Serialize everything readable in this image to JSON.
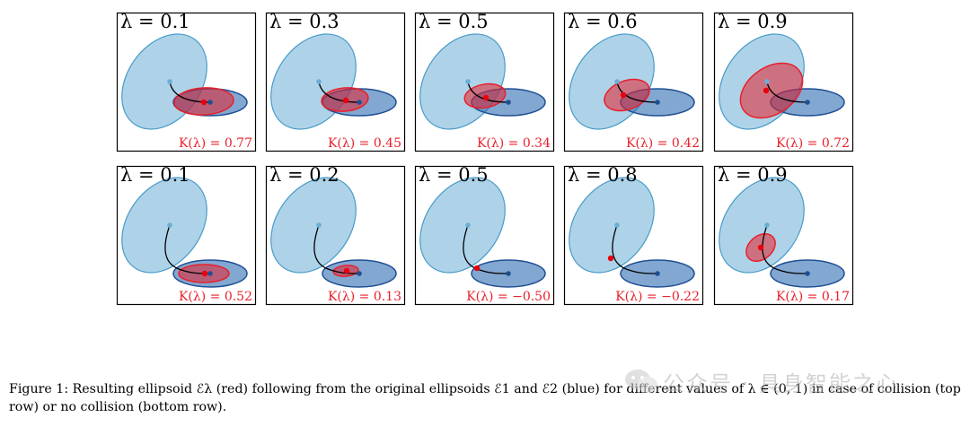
{
  "figure": {
    "rows": [
      {
        "name": "collision",
        "panels": [
          {
            "lambda_label": "λ = 0.1",
            "k_label": "K(λ) = 0.77"
          },
          {
            "lambda_label": "λ = 0.3",
            "k_label": "K(λ) = 0.45"
          },
          {
            "lambda_label": "λ = 0.5",
            "k_label": "K(λ) = 0.34"
          },
          {
            "lambda_label": "λ = 0.6",
            "k_label": "K(λ) = 0.42"
          },
          {
            "lambda_label": "λ = 0.9",
            "k_label": "K(λ) = 0.72"
          }
        ]
      },
      {
        "name": "no-collision",
        "panels": [
          {
            "lambda_label": "λ = 0.1",
            "k_label": "K(λ) = 0.52"
          },
          {
            "lambda_label": "λ = 0.2",
            "k_label": "K(λ) = 0.13"
          },
          {
            "lambda_label": "λ = 0.5",
            "k_label": "K(λ) = −0.50"
          },
          {
            "lambda_label": "λ = 0.8",
            "k_label": "K(λ) = −0.22"
          },
          {
            "lambda_label": "λ = 0.9",
            "k_label": "K(λ) = 0.17"
          }
        ]
      }
    ],
    "colors": {
      "ellipse1_fill": "#6baed6",
      "ellipse1_stroke": "#4a9cc9",
      "ellipse2_fill": "#2f6db3",
      "ellipse2_stroke": "#1f4f94",
      "result_fill": "#e8202b",
      "result_stroke": "#e8202b",
      "k_text": "#e8202b"
    }
  },
  "caption": {
    "text": "Figure 1: Resulting ellipsoid ℰλ (red) following from the original ellipsoids ℰ1 and ℰ2 (blue) for different values of λ ∈ (0, 1) in case of collision (top row) or no collision (bottom row)."
  },
  "watermark": {
    "text": "公众号 · 具身智能之心"
  }
}
